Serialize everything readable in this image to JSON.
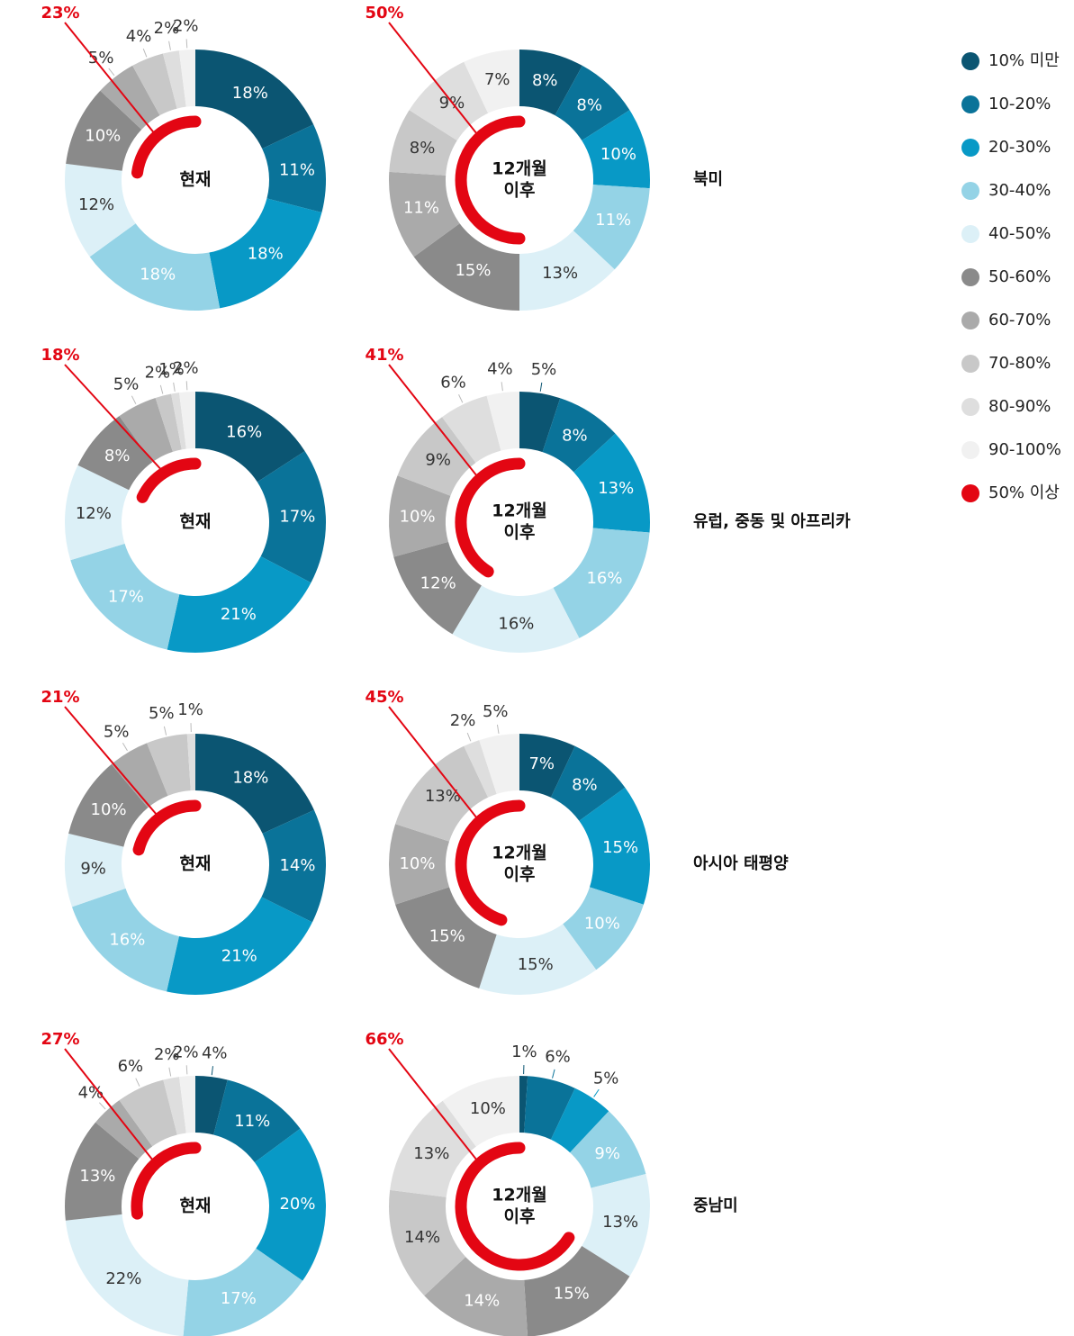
{
  "legend": {
    "names": [
      "10% 미만",
      "10-20%",
      "20-30%",
      "30-40%",
      "40-50%",
      "50-60%",
      "60-70%",
      "70-80%",
      "80-90%",
      "90-100%",
      "50% 이상"
    ],
    "colors": [
      "#0b5572",
      "#0a7399",
      "#0899c6",
      "#94d3e6",
      "#dcf0f7",
      "#8a8a8a",
      "#aaaaaa",
      "#c8c8c8",
      "#dedede",
      "#f1f1f1",
      "#e30613"
    ]
  },
  "regions": [
    "북미",
    "유럽, 중동 및 아프리카",
    "아시아 태평양",
    "중남미"
  ],
  "chart_data": [
    {
      "type": "donut",
      "center_label": [
        "현재"
      ],
      "values": [
        18,
        11,
        18,
        18,
        12,
        10,
        5,
        4,
        2,
        2
      ],
      "value_labels": [
        "18%",
        "11%",
        "18%",
        "18%",
        "12%",
        "10%",
        "5%",
        "4%",
        "2%",
        "2%"
      ],
      "highlight": 23,
      "highlight_label": "23%"
    },
    {
      "type": "donut",
      "center_label": [
        "12개월",
        "이후"
      ],
      "values": [
        8,
        8,
        10,
        11,
        13,
        15,
        11,
        8,
        9,
        7
      ],
      "value_labels": [
        "8%",
        "8%",
        "10%",
        "11%",
        "13%",
        "15%",
        "11%",
        "8%",
        "9%",
        "7%"
      ],
      "highlight": 50,
      "highlight_label": "50%"
    },
    {
      "type": "donut",
      "center_label": [
        "현재"
      ],
      "values": [
        16,
        17,
        21,
        17,
        12,
        8,
        5,
        2,
        1,
        2
      ],
      "value_labels": [
        "16%",
        "17%",
        "21%",
        "17%",
        "12%",
        "8%",
        "5%",
        "2%",
        "1%",
        "2%"
      ],
      "highlight": 18,
      "highlight_label": "18%"
    },
    {
      "type": "donut",
      "center_label": [
        "12개월",
        "이후"
      ],
      "values": [
        5,
        8,
        13,
        16,
        16,
        12,
        10,
        9,
        6,
        4
      ],
      "value_labels": [
        "5%",
        "8%",
        "13%",
        "16%",
        "16%",
        "12%",
        "10%",
        "9%",
        "6%",
        "4%"
      ],
      "highlight": 41,
      "highlight_label": "41%"
    },
    {
      "type": "donut",
      "center_label": [
        "현재"
      ],
      "values": [
        18,
        14,
        21,
        16,
        9,
        10,
        5,
        5,
        1
      ],
      "value_labels": [
        "18%",
        "14%",
        "21%",
        "16%",
        "9%",
        "10%",
        "5%",
        "5%",
        "1%"
      ],
      "highlight": 21,
      "highlight_label": "21%"
    },
    {
      "type": "donut",
      "center_label": [
        "12개월",
        "이후"
      ],
      "values": [
        7,
        8,
        15,
        10,
        15,
        15,
        10,
        13,
        2,
        5
      ],
      "value_labels": [
        "7%",
        "8%",
        "15%",
        "10%",
        "15%",
        "15%",
        "10%",
        "13%",
        "2%",
        "5%"
      ],
      "highlight": 45,
      "highlight_label": "45%"
    },
    {
      "type": "donut",
      "center_label": [
        "현재"
      ],
      "values": [
        4,
        11,
        20,
        17,
        22,
        13,
        4,
        6,
        2,
        2
      ],
      "value_labels": [
        "4%",
        "11%",
        "20%",
        "17%",
        "22%",
        "13%",
        "4%",
        "6%",
        "2%",
        "2%"
      ],
      "highlight": 27,
      "highlight_label": "27%"
    },
    {
      "type": "donut",
      "center_label": [
        "12개월",
        "이후"
      ],
      "values": [
        1,
        6,
        5,
        9,
        13,
        15,
        14,
        14,
        13,
        10
      ],
      "value_labels": [
        "1%",
        "6%",
        "5%",
        "9%",
        "13%",
        "15%",
        "14%",
        "14%",
        "13%",
        "10%"
      ],
      "highlight": 66,
      "highlight_label": "66%"
    }
  ]
}
